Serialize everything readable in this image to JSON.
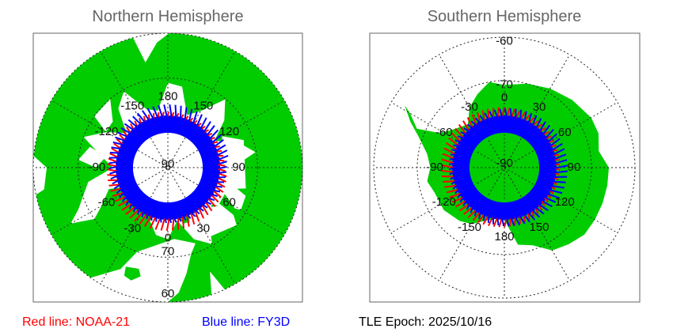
{
  "north": {
    "title": "Northern Hemisphere",
    "lon_labels": [
      {
        "lon": 0,
        "text": "0"
      },
      {
        "lon": 30,
        "text": "30"
      },
      {
        "lon": 60,
        "text": "60"
      },
      {
        "lon": 90,
        "text": "90"
      },
      {
        "lon": 120,
        "text": "120"
      },
      {
        "lon": 150,
        "text": "150"
      },
      {
        "lon": 180,
        "text": "180"
      },
      {
        "lon": -150,
        "text": "-150"
      },
      {
        "lon": -120,
        "text": "-120"
      },
      {
        "lon": -90,
        "text": "-90"
      },
      {
        "lon": -60,
        "text": "-60"
      },
      {
        "lon": -30,
        "text": "-30"
      }
    ],
    "lat_labels": [
      {
        "lat": 90,
        "text": "90"
      },
      {
        "lat": 70,
        "text": "70"
      },
      {
        "lat": 60,
        "text": "60"
      }
    ]
  },
  "south": {
    "title": "Southern Hemisphere",
    "lon_labels": [
      {
        "lon": 0,
        "text": "0"
      },
      {
        "lon": 30,
        "text": "30"
      },
      {
        "lon": 60,
        "text": "60"
      },
      {
        "lon": 90,
        "text": "90"
      },
      {
        "lon": 120,
        "text": "120"
      },
      {
        "lon": 150,
        "text": "150"
      },
      {
        "lon": 180,
        "text": "180"
      },
      {
        "lon": -150,
        "text": "-150"
      },
      {
        "lon": -120,
        "text": "-120"
      },
      {
        "lon": -90,
        "text": "-90"
      },
      {
        "lon": -60,
        "text": "-60"
      },
      {
        "lon": -30,
        "text": "-30"
      }
    ],
    "lat_labels": [
      {
        "lat": -90,
        "text": "-90"
      },
      {
        "lat": -70,
        "text": "-70"
      },
      {
        "lat": -60,
        "text": "-60"
      }
    ]
  },
  "legend": {
    "red": "Red line: NOAA-21",
    "blue": "Blue line: FY3D",
    "epoch": "TLE Epoch: 2025/10/16"
  },
  "colors": {
    "land": "#00cc00",
    "noaa21": "#ff0000",
    "fy3d": "#0000ff",
    "frame": "#666666"
  }
}
